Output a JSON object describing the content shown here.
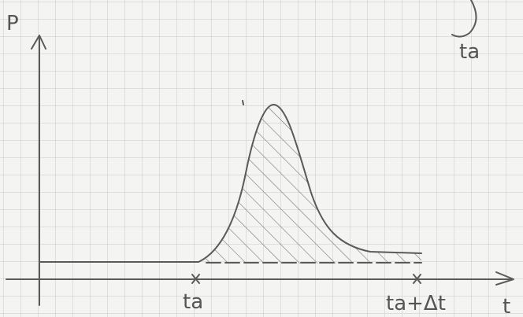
{
  "axes": {
    "y_label": "P",
    "x_label": "t"
  },
  "x_marks": [
    "ta",
    "ta+Δt"
  ],
  "corner_label": "ta"
}
